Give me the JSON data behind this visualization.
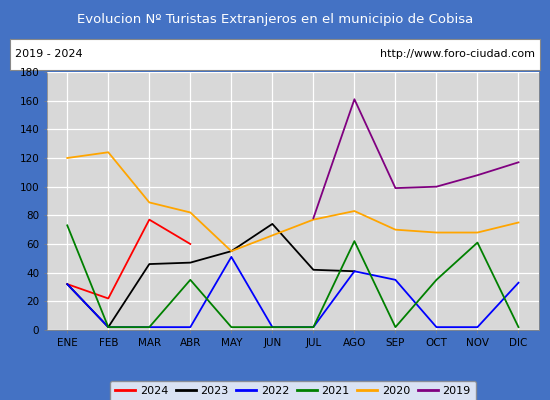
{
  "title": "Evolucion Nº Turistas Extranjeros en el municipio de Cobisa",
  "title_bgcolor": "#4472c4",
  "title_color": "white",
  "subtitle_left": "2019 - 2024",
  "subtitle_right": "http://www.foro-ciudad.com",
  "months": [
    "ENE",
    "FEB",
    "MAR",
    "ABR",
    "MAY",
    "JUN",
    "JUL",
    "AGO",
    "SEP",
    "OCT",
    "NOV",
    "DIC"
  ],
  "ylim": [
    0,
    180
  ],
  "yticks": [
    0,
    20,
    40,
    60,
    80,
    100,
    120,
    140,
    160,
    180
  ],
  "series": {
    "2024": {
      "color": "red",
      "values": [
        32,
        22,
        77,
        60,
        null,
        null,
        null,
        null,
        null,
        null,
        null,
        null
      ]
    },
    "2023": {
      "color": "black",
      "values": [
        32,
        2,
        46,
        47,
        55,
        74,
        42,
        41,
        null,
        null,
        null,
        null
      ]
    },
    "2022": {
      "color": "blue",
      "values": [
        32,
        2,
        2,
        2,
        51,
        2,
        2,
        41,
        35,
        2,
        2,
        33
      ]
    },
    "2021": {
      "color": "green",
      "values": [
        73,
        2,
        2,
        35,
        2,
        2,
        2,
        62,
        2,
        35,
        61,
        2
      ]
    },
    "2020": {
      "color": "orange",
      "values": [
        120,
        124,
        89,
        82,
        55,
        66,
        77,
        83,
        70,
        68,
        68,
        75
      ]
    },
    "2019": {
      "color": "purple",
      "values": [
        null,
        null,
        null,
        null,
        null,
        null,
        78,
        161,
        99,
        100,
        108,
        117
      ]
    }
  },
  "legend_order": [
    "2024",
    "2023",
    "2022",
    "2021",
    "2020",
    "2019"
  ],
  "plot_bg_color": "#d8d8d8",
  "grid_color": "white",
  "border_color": "#4472c4",
  "outer_bg": "#4472c4"
}
